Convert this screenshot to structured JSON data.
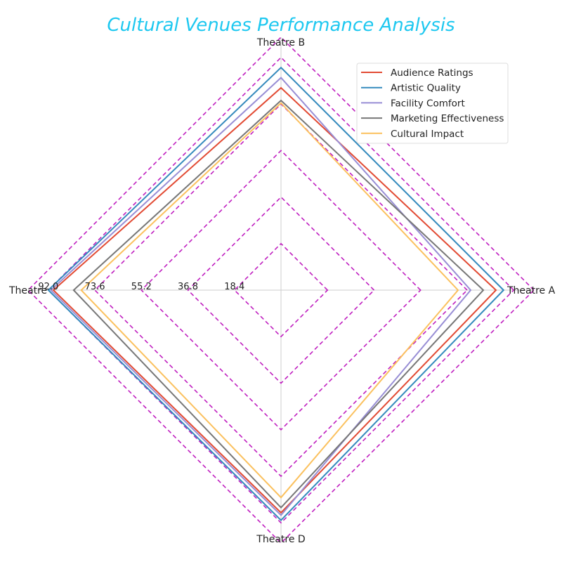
{
  "chart_data": {
    "type": "radar",
    "title": "Cultural Venues Performance Analysis",
    "title_color": "#1ec8f0",
    "categories": [
      "Theatre A",
      "Theatre B",
      "Theatre C",
      "Theatre D"
    ],
    "axis_label_text": [
      "Theatre A",
      "Theatre B",
      "Theatre",
      "Theatre D"
    ],
    "rmax": 100,
    "ticks": [
      18.4,
      36.8,
      55.2,
      73.6,
      92.0
    ],
    "tick_labels": [
      "18.4",
      "36.8",
      "55.2",
      "73.6",
      "92.0"
    ],
    "grid_color": "#c020c0",
    "grid_style": "dashed",
    "legend_position": "top-right",
    "series": [
      {
        "name": "Audience Ratings",
        "color": "#e24a33",
        "values": [
          85,
          80,
          90,
          88
        ]
      },
      {
        "name": "Artistic Quality",
        "color": "#348abd",
        "values": [
          88,
          88,
          92,
          91
        ]
      },
      {
        "name": "Facility Comfort",
        "color": "#988ed5",
        "values": [
          75,
          84,
          91,
          89
        ]
      },
      {
        "name": "Marketing Effectiveness",
        "color": "#777777",
        "values": [
          80,
          75,
          82,
          86
        ]
      },
      {
        "name": "Cultural Impact",
        "color": "#fbc15e",
        "values": [
          70,
          74,
          79,
          82
        ]
      }
    ]
  }
}
